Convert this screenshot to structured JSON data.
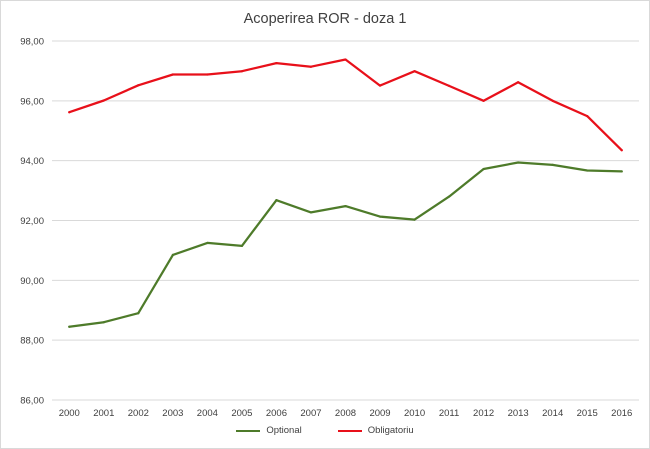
{
  "chart_data": {
    "type": "line",
    "title": "Acoperirea ROR - doza 1",
    "xlabel": "",
    "ylabel": "",
    "categories": [
      "2000",
      "2001",
      "2002",
      "2003",
      "2004",
      "2005",
      "2006",
      "2007",
      "2008",
      "2009",
      "2010",
      "2011",
      "2012",
      "2013",
      "2014",
      "2015",
      "2016"
    ],
    "ylim": [
      86,
      98
    ],
    "yticks": [
      86,
      88,
      90,
      92,
      94,
      96,
      98
    ],
    "ytick_labels": [
      "86,00",
      "88,00",
      "90,00",
      "92,00",
      "94,00",
      "96,00",
      "98,00"
    ],
    "grid": true,
    "legend_position": "bottom",
    "series": [
      {
        "name": "Optional",
        "color": "#4e7b2a",
        "values": [
          88.45,
          88.6,
          88.9,
          90.85,
          91.25,
          91.15,
          92.68,
          92.27,
          92.48,
          92.13,
          92.03,
          92.8,
          93.72,
          93.94,
          93.86,
          93.67,
          93.64
        ]
      },
      {
        "name": "Obligatoriu",
        "color": "#e8101a",
        "values": [
          95.62,
          96.01,
          96.52,
          96.88,
          96.88,
          96.99,
          97.26,
          97.14,
          97.38,
          96.51,
          96.99,
          96.5,
          96.0,
          96.62,
          96.0,
          95.49,
          94.35
        ]
      }
    ]
  }
}
